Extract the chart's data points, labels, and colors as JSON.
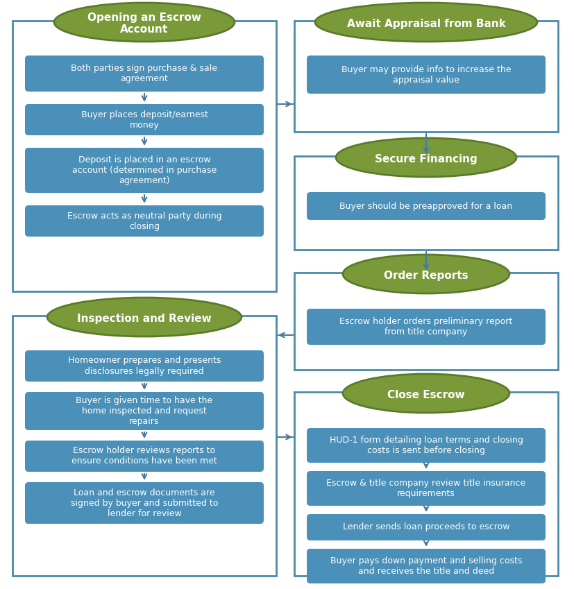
{
  "bg_color": "#ffffff",
  "box_color": "#4a90b8",
  "box_border_color": "#4a90b8",
  "oval_color": "#7a9a3a",
  "oval_border_color": "#5a7a2a",
  "section_border_color": "#4a8aaa",
  "text_color_white": "#ffffff",
  "arrow_color": "#4a7a9a",
  "sections": {
    "opening": {
      "title": "Opening an Escrow\nAccount",
      "steps": [
        "Both parties sign purchase & sale\nagreement",
        "Buyer places deposit/earnest\nmoney",
        "Deposit is placed in an escrow\naccount (determined in purchase\nagreement)",
        "Escrow acts as neutral party during\nclosing"
      ]
    },
    "appraisal": {
      "title": "Await Appraisal from Bank",
      "steps": [
        "Buyer may provide info to increase the\nappraisal value"
      ]
    },
    "financing": {
      "title": "Secure Financing",
      "steps": [
        "Buyer should be preapproved for a loan"
      ]
    },
    "reports": {
      "title": "Order Reports",
      "steps": [
        "Escrow holder orders preliminary report\nfrom title company"
      ]
    },
    "inspection": {
      "title": "Inspection and Review",
      "steps": [
        "Homeowner prepares and presents\ndisclosures legally required",
        "Buyer is given time to have the\nhome inspected and request\nrepairs",
        "Escrow holder reviews reports to\nensure conditions have been met",
        "Loan and escrow documents are\nsigned by buyer and submitted to\nlender for review"
      ]
    },
    "close": {
      "title": "Close Escrow",
      "steps": [
        "HUD-1 form detailing loan terms and closing\ncosts is sent before closing",
        "Escrow & title company review title insurance\nrequirements",
        "Lender sends loan proceeds to escrow",
        "Buyer pays down payment and selling costs\nand receives the title and deed"
      ]
    }
  }
}
